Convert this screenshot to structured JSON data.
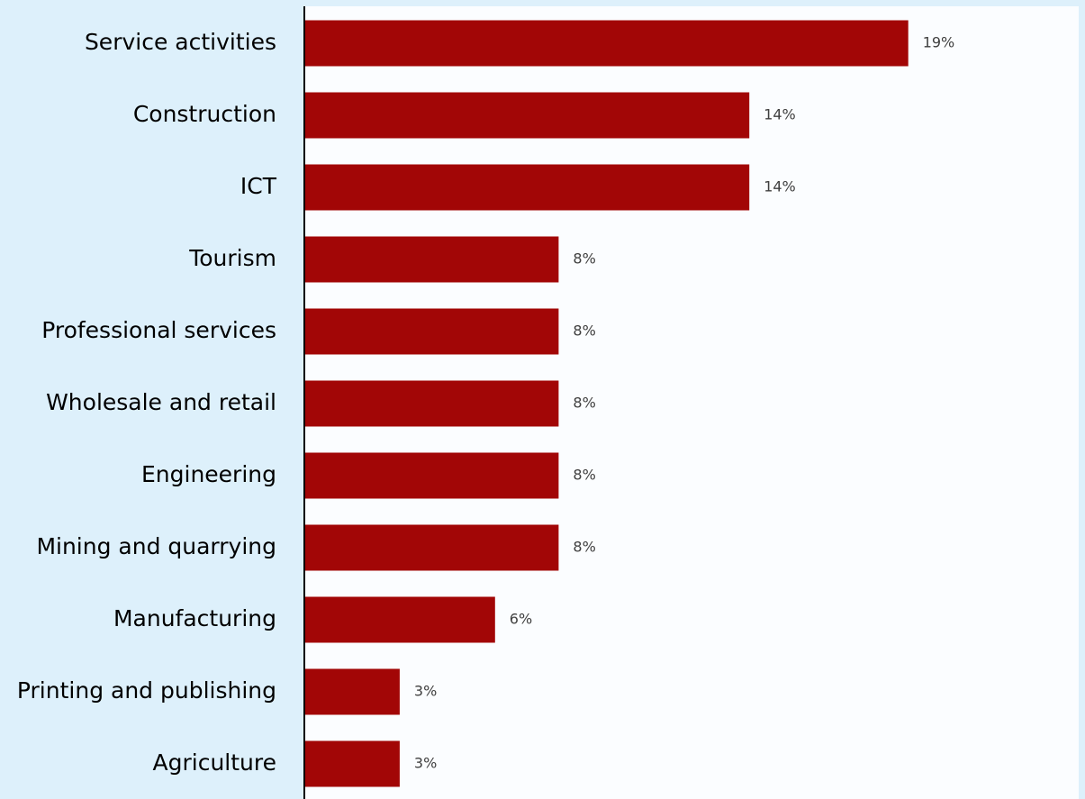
{
  "chart_data": {
    "type": "bar",
    "orientation": "horizontal",
    "categories": [
      "Service activities",
      "Construction",
      "ICT",
      "Tourism",
      "Professional services",
      "Wholesale and retail",
      "Engineering",
      "Mining and quarrying",
      "Manufacturing",
      "Printing and publishing",
      "Agriculture"
    ],
    "values": [
      19,
      14,
      14,
      8,
      8,
      8,
      8,
      8,
      6,
      3,
      3
    ],
    "value_labels": [
      "19%",
      "14%",
      "14%",
      "8%",
      "8%",
      "8%",
      "8%",
      "8%",
      "6%",
      "3%",
      "3%"
    ],
    "title": "",
    "xlabel": "",
    "ylabel": "",
    "grid": false,
    "legend": "none",
    "bar_color": "#a20606",
    "plot_background": "#fbfdff",
    "outer_background": "#ddf0fb"
  }
}
